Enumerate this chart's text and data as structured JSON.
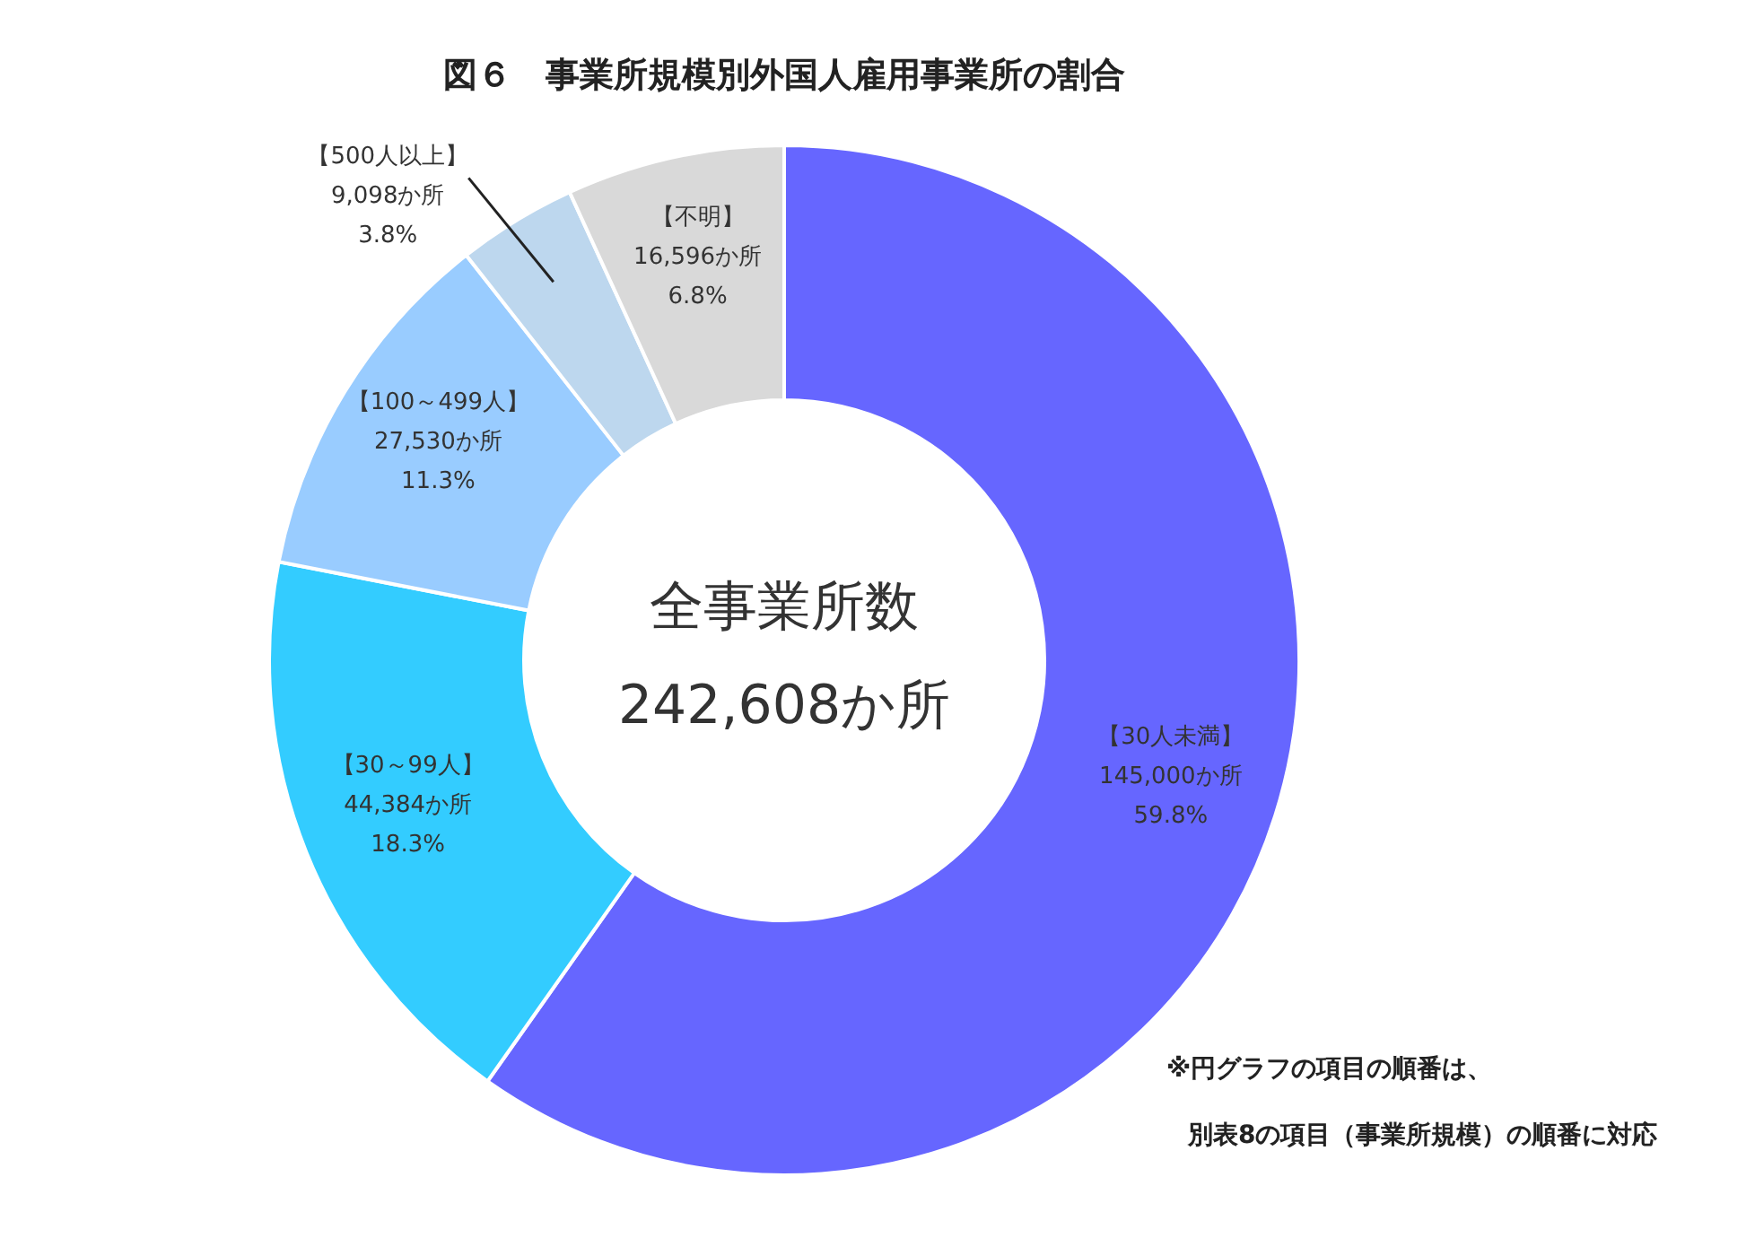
{
  "chart_data": {
    "type": "donut",
    "title": "図６　事業所規模別外国人雇用事業所の割合",
    "categories": [
      "【30人未満】",
      "【30～99人】",
      "【100～499人】",
      "【500人以上】",
      "【不明】"
    ],
    "values": [
      145000,
      44384,
      27530,
      9098,
      16596
    ],
    "colors": [
      "#6666ff",
      "#33ccff",
      "#99ccff",
      "#bdd7ee",
      "#d9d9d9"
    ],
    "value_labels": [
      "145,000か所\n59.8%",
      "44,384か所\n18.3%",
      "27,530か所\n11.3%",
      "9,098か所\n3.8%",
      "16,596か所\n6.8%"
    ],
    "annotations": [
      "全事業所数",
      "242,608か所",
      "※円グラフの項目の順番は、",
      "別表8の項目（事業所規模）の順番に対応"
    ]
  }
}
